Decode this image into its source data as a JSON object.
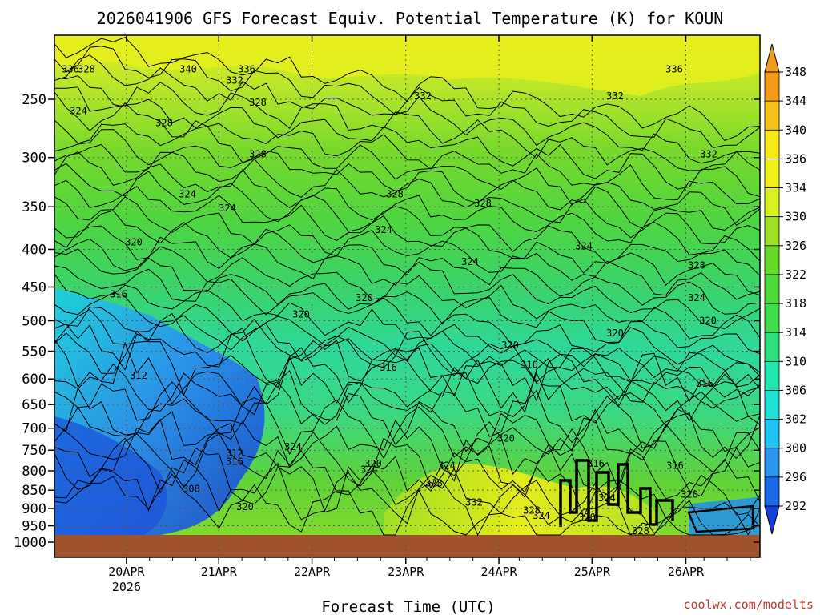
{
  "chart_data": {
    "type": "heatmap",
    "title": "2026041906 GFS Forecast Equiv. Potential Temperature (K) for KOUN",
    "xlabel": "Forecast Time (UTC)",
    "ylabel": "",
    "credit": "coolwx.com/modelts",
    "x_ticks": [
      {
        "day": "20APR",
        "year": "2026",
        "pos": 0.102
      },
      {
        "day": "21APR",
        "year": "",
        "pos": 0.233
      },
      {
        "day": "22APR",
        "year": "",
        "pos": 0.365
      },
      {
        "day": "23APR",
        "year": "",
        "pos": 0.498
      },
      {
        "day": "24APR",
        "year": "",
        "pos": 0.63
      },
      {
        "day": "25APR",
        "year": "",
        "pos": 0.762
      },
      {
        "day": "26APR",
        "year": "",
        "pos": 0.895
      }
    ],
    "y_ticks": [
      250,
      300,
      350,
      400,
      450,
      500,
      550,
      600,
      650,
      700,
      750,
      800,
      850,
      900,
      950,
      1000
    ],
    "ylim": [
      200,
      1050
    ],
    "colorbar": {
      "levels": [
        292,
        296,
        300,
        302,
        306,
        310,
        314,
        318,
        322,
        326,
        330,
        334,
        336,
        340,
        344,
        348
      ],
      "colors": [
        "#1240d8",
        "#1d6ae8",
        "#2a96f0",
        "#1fc4f2",
        "#1ee0d6",
        "#22e6b0",
        "#2ee080",
        "#3ddd4c",
        "#4fd93a",
        "#68d828",
        "#9ee022",
        "#d8f01e",
        "#f0f01a",
        "#f8e818",
        "#f5c219",
        "#f39c18"
      ]
    },
    "contour_labels": [
      {
        "text": "336",
        "p": 230
      },
      {
        "text": "328",
        "p": 230
      },
      {
        "text": "340",
        "p": 230
      },
      {
        "text": "336",
        "p": 230
      },
      {
        "text": "332",
        "p": 238
      },
      {
        "text": "328",
        "p": 255
      },
      {
        "text": "324",
        "p": 262
      },
      {
        "text": "332",
        "p": 250
      },
      {
        "text": "332",
        "p": 250
      },
      {
        "text": "336",
        "p": 230
      },
      {
        "text": "328",
        "p": 272
      },
      {
        "text": "328",
        "p": 300
      },
      {
        "text": "332",
        "p": 300
      },
      {
        "text": "324",
        "p": 340
      },
      {
        "text": "324",
        "p": 355
      },
      {
        "text": "328",
        "p": 340
      },
      {
        "text": "328",
        "p": 350
      },
      {
        "text": "324",
        "p": 380
      },
      {
        "text": "324",
        "p": 400
      },
      {
        "text": "320",
        "p": 395
      },
      {
        "text": "324",
        "p": 420
      },
      {
        "text": "328",
        "p": 425
      },
      {
        "text": "316",
        "p": 465
      },
      {
        "text": "320",
        "p": 470
      },
      {
        "text": "324",
        "p": 470
      },
      {
        "text": "320",
        "p": 495
      },
      {
        "text": "320",
        "p": 525
      },
      {
        "text": "320",
        "p": 505
      },
      {
        "text": "320",
        "p": 545
      },
      {
        "text": "312",
        "p": 600
      },
      {
        "text": "316",
        "p": 585
      },
      {
        "text": "316",
        "p": 580
      },
      {
        "text": "316",
        "p": 615
      },
      {
        "text": "312",
        "p": 765
      },
      {
        "text": "316",
        "p": 785
      },
      {
        "text": "324",
        "p": 750
      },
      {
        "text": "324",
        "p": 795
      },
      {
        "text": "320",
        "p": 790
      },
      {
        "text": "324",
        "p": 805
      },
      {
        "text": "320",
        "p": 730
      },
      {
        "text": "328",
        "p": 840
      },
      {
        "text": "308",
        "p": 855
      },
      {
        "text": "320",
        "p": 905
      },
      {
        "text": "332",
        "p": 892
      },
      {
        "text": "328",
        "p": 915
      },
      {
        "text": "324",
        "p": 930
      },
      {
        "text": "316",
        "p": 790
      },
      {
        "text": "324",
        "p": 880
      },
      {
        "text": "320",
        "p": 935
      },
      {
        "text": "328",
        "p": 975
      },
      {
        "text": "316",
        "p": 795
      },
      {
        "text": "320",
        "p": 870
      }
    ]
  }
}
